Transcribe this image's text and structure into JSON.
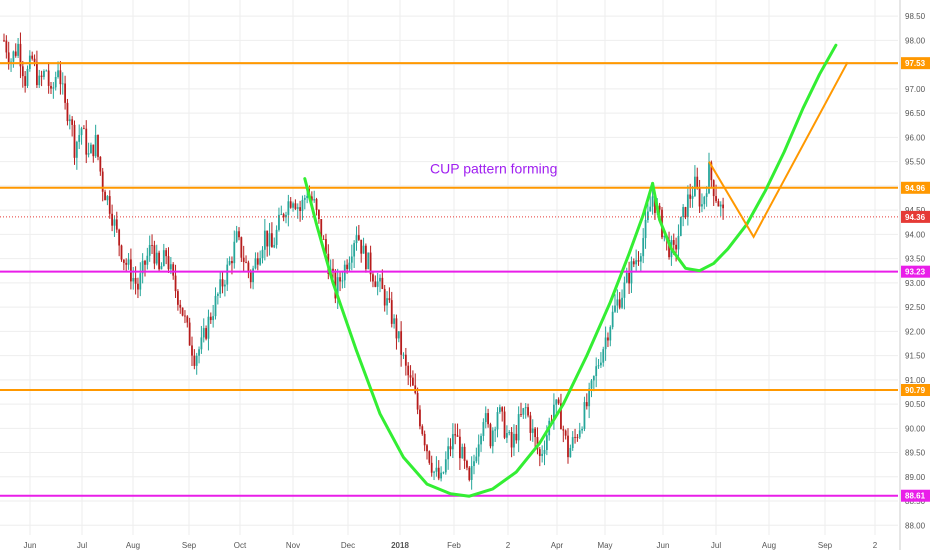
{
  "chart_data": {
    "type": "candlestick",
    "annotation": "CUP pattern forming",
    "y_ticks": [
      "98.50",
      "98.00",
      "97.50",
      "97.00",
      "96.50",
      "96.00",
      "95.50",
      "95.00",
      "94.50",
      "94.00",
      "93.50",
      "93.00",
      "92.50",
      "92.00",
      "91.50",
      "91.00",
      "90.50",
      "90.00",
      "89.50",
      "89.00",
      "88.50",
      "88.00"
    ],
    "ylim": [
      87.8,
      98.75
    ],
    "x_ticks": [
      {
        "label": "Jun",
        "bold": false
      },
      {
        "label": "Jul",
        "bold": false
      },
      {
        "label": "Aug",
        "bold": false
      },
      {
        "label": "Sep",
        "bold": false
      },
      {
        "label": "Oct",
        "bold": false
      },
      {
        "label": "Nov",
        "bold": false
      },
      {
        "label": "Dec",
        "bold": false
      },
      {
        "label": "2018",
        "bold": true
      },
      {
        "label": "Feb",
        "bold": false
      },
      {
        "label": "2",
        "bold": false
      },
      {
        "label": "Apr",
        "bold": false
      },
      {
        "label": "May",
        "bold": false
      },
      {
        "label": "Jun",
        "bold": false
      },
      {
        "label": "Jul",
        "bold": false
      },
      {
        "label": "Aug",
        "bold": false
      },
      {
        "label": "Sep",
        "bold": false
      },
      {
        "label": "2",
        "bold": false
      }
    ],
    "horizontal_levels": [
      {
        "value": 97.53,
        "label": "97.53",
        "color": "#ff9800"
      },
      {
        "value": 94.96,
        "label": "94.96",
        "color": "#ff9800"
      },
      {
        "value": 93.23,
        "label": "93.23",
        "color": "#e91ee9"
      },
      {
        "value": 90.79,
        "label": "90.79",
        "color": "#ff9800"
      },
      {
        "value": 88.61,
        "label": "88.61",
        "color": "#e91ee9"
      }
    ],
    "last_price": {
      "value": 94.36,
      "label": "94.36",
      "color": "#e53935"
    },
    "colors": {
      "up": "#26a69a",
      "down": "#b71c1c",
      "cup_curve": "#33ee33",
      "projection": "#ff9800",
      "axis_text": "#555555",
      "grid": "#eeeeee"
    },
    "price_path": [
      [
        0,
        98.0
      ],
      [
        3,
        97.6
      ],
      [
        6,
        97.9
      ],
      [
        9,
        97.2
      ],
      [
        12,
        97.6
      ],
      [
        15,
        97.1
      ],
      [
        18,
        97.4
      ],
      [
        20,
        96.8
      ],
      [
        23,
        97.5
      ],
      [
        26,
        96.6
      ],
      [
        28,
        96.5
      ],
      [
        30,
        95.8
      ],
      [
        33,
        96.2
      ],
      [
        36,
        95.6
      ],
      [
        39,
        95.9
      ],
      [
        42,
        95.0
      ],
      [
        45,
        94.6
      ],
      [
        48,
        94.0
      ],
      [
        51,
        93.5
      ],
      [
        54,
        93.2
      ],
      [
        57,
        92.9
      ],
      [
        60,
        93.4
      ],
      [
        63,
        93.8
      ],
      [
        66,
        93.2
      ],
      [
        69,
        93.6
      ],
      [
        72,
        93.0
      ],
      [
        75,
        92.6
      ],
      [
        78,
        92.0
      ],
      [
        81,
        91.5
      ],
      [
        84,
        91.7
      ],
      [
        87,
        92.2
      ],
      [
        90,
        92.6
      ],
      [
        93,
        93.0
      ],
      [
        96,
        93.4
      ],
      [
        99,
        93.9
      ],
      [
        102,
        93.5
      ],
      [
        105,
        93.1
      ],
      [
        108,
        93.6
      ],
      [
        111,
        94.0
      ],
      [
        114,
        93.7
      ],
      [
        117,
        94.2
      ],
      [
        120,
        94.6
      ],
      [
        123,
        94.8
      ],
      [
        126,
        94.5
      ],
      [
        129,
        94.9
      ],
      [
        132,
        94.6
      ],
      [
        135,
        94.0
      ],
      [
        138,
        93.4
      ],
      [
        141,
        92.8
      ],
      [
        144,
        93.2
      ],
      [
        147,
        93.6
      ],
      [
        150,
        94.1
      ],
      [
        153,
        93.6
      ],
      [
        156,
        93.3
      ],
      [
        159,
        93.0
      ],
      [
        162,
        92.7
      ],
      [
        165,
        92.3
      ],
      [
        168,
        91.8
      ],
      [
        171,
        91.2
      ],
      [
        174,
        90.8
      ],
      [
        177,
        90.2
      ],
      [
        180,
        89.6
      ],
      [
        183,
        89.1
      ],
      [
        186,
        88.9
      ],
      [
        189,
        89.5
      ],
      [
        192,
        89.9
      ],
      [
        195,
        89.4
      ],
      [
        198,
        88.8
      ],
      [
        201,
        89.6
      ],
      [
        204,
        90.3
      ],
      [
        207,
        89.8
      ],
      [
        210,
        90.4
      ],
      [
        213,
        90.0
      ],
      [
        216,
        89.6
      ],
      [
        219,
        90.1
      ],
      [
        222,
        90.4
      ],
      [
        225,
        89.9
      ],
      [
        228,
        89.4
      ],
      [
        231,
        89.9
      ],
      [
        234,
        90.5
      ],
      [
        237,
        90.2
      ],
      [
        240,
        89.5
      ],
      [
        243,
        89.8
      ],
      [
        246,
        90.2
      ],
      [
        249,
        90.6
      ],
      [
        252,
        91.2
      ],
      [
        255,
        91.7
      ],
      [
        258,
        92.2
      ],
      [
        261,
        92.6
      ],
      [
        264,
        92.9
      ],
      [
        267,
        93.3
      ],
      [
        270,
        93.6
      ],
      [
        273,
        94.1
      ],
      [
        276,
        94.8
      ],
      [
        279,
        94.3
      ],
      [
        282,
        93.8
      ],
      [
        285,
        93.6
      ],
      [
        288,
        94.2
      ],
      [
        291,
        94.7
      ],
      [
        294,
        95.0
      ],
      [
        297,
        94.6
      ],
      [
        300,
        95.3
      ],
      [
        303,
        94.8
      ],
      [
        306,
        94.4
      ]
    ]
  }
}
